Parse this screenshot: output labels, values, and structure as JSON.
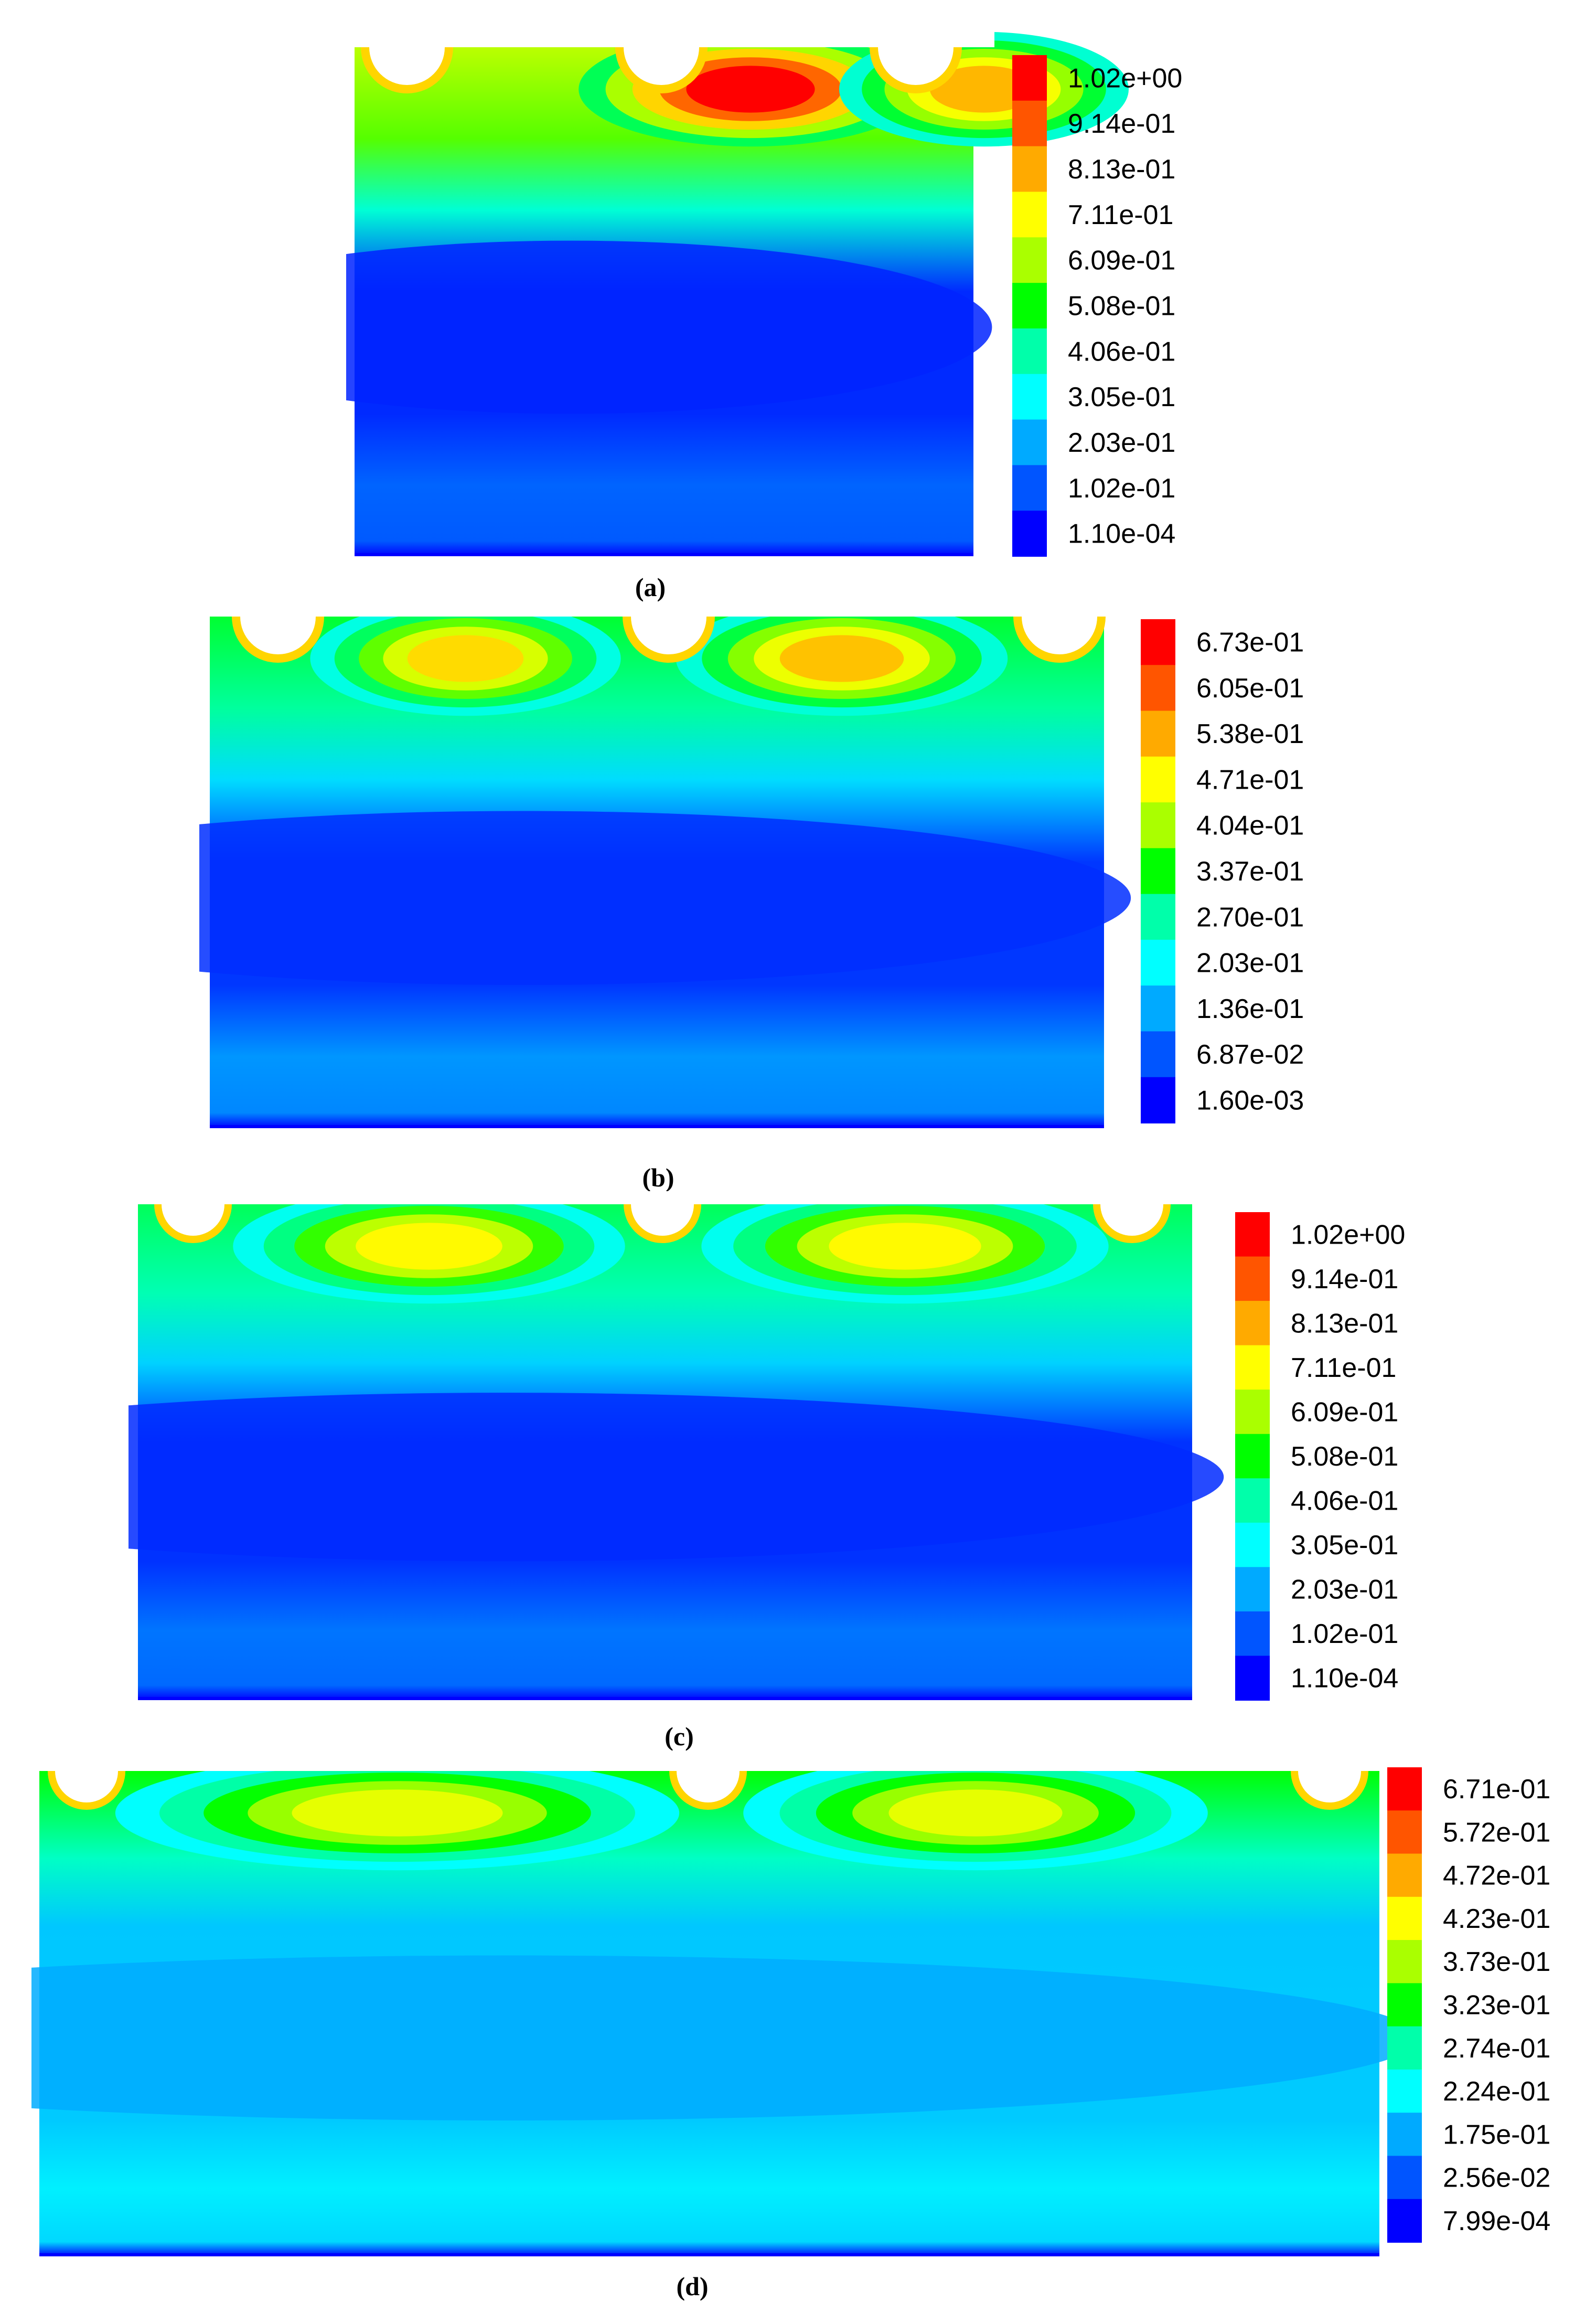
{
  "chart_data": [
    {
      "type": "heatmap",
      "caption": "(a)",
      "colorbar": {
        "ticks": [
          "1.02e+00",
          "9.14e-01",
          "8.13e-01",
          "7.11e-01",
          "6.09e-01",
          "5.08e-01",
          "4.06e-01",
          "3.05e-01",
          "2.03e-01",
          "1.02e-01",
          "1.10e-04"
        ],
        "min": 0.00011,
        "max": 1.02
      },
      "cylinders": 3,
      "hot_zones": [
        {
          "between": "cylinders 1-2",
          "peak_value": 1.02
        },
        {
          "between": "cylinders 2-3",
          "peak_value": 0.8
        }
      ],
      "bulk_value": 0.05,
      "bottom_value": 0.12
    },
    {
      "type": "heatmap",
      "caption": "(b)",
      "colorbar": {
        "ticks": [
          "6.73e-01",
          "6.05e-01",
          "5.38e-01",
          "4.71e-01",
          "4.04e-01",
          "3.37e-01",
          "2.70e-01",
          "2.03e-01",
          "1.36e-01",
          "6.87e-02",
          "1.60e-03"
        ],
        "min": 0.0016,
        "max": 0.673
      },
      "cylinders": 3,
      "hot_zones": [
        {
          "between": "cylinders 1-2",
          "peak_value": 0.5
        },
        {
          "between": "cylinders 2-3",
          "peak_value": 0.52
        }
      ],
      "bulk_value": 0.045,
      "bottom_value": 0.12
    },
    {
      "type": "heatmap",
      "caption": "(c)",
      "colorbar": {
        "ticks": [
          "1.02e+00",
          "9.14e-01",
          "8.13e-01",
          "7.11e-01",
          "6.09e-01",
          "5.08e-01",
          "4.06e-01",
          "3.05e-01",
          "2.03e-01",
          "1.02e-01",
          "1.10e-04"
        ],
        "min": 0.00011,
        "max": 1.02
      },
      "cylinders": 3,
      "hot_zones": [
        {
          "between": "cylinders 1-2",
          "peak_value": 0.72
        },
        {
          "between": "cylinders 2-3",
          "peak_value": 0.72
        }
      ],
      "bulk_value": 0.06,
      "bottom_value": 0.14
    },
    {
      "type": "heatmap",
      "caption": "(d)",
      "colorbar": {
        "ticks": [
          "6.71e-01",
          "5.72e-01",
          "4.72e-01",
          "4.23e-01",
          "3.73e-01",
          "3.23e-01",
          "2.74e-01",
          "2.24e-01",
          "1.75e-01",
          "2.56e-02",
          "7.99e-04"
        ],
        "min": 0.000799,
        "max": 0.671
      },
      "cylinders": 3,
      "hot_zones": [
        {
          "between": "cylinders 1-2",
          "peak_value": 0.45
        },
        {
          "between": "cylinders 2-3",
          "peak_value": 0.45
        }
      ],
      "bulk_value": 0.16,
      "bottom_value": 0.19
    }
  ],
  "colormap": [
    "#0000ff",
    "#0055ff",
    "#00aaff",
    "#00ffff",
    "#00ffaa",
    "#00ff00",
    "#aaff00",
    "#ffff00",
    "#ffaa00",
    "#ff5500",
    "#ff0000"
  ]
}
